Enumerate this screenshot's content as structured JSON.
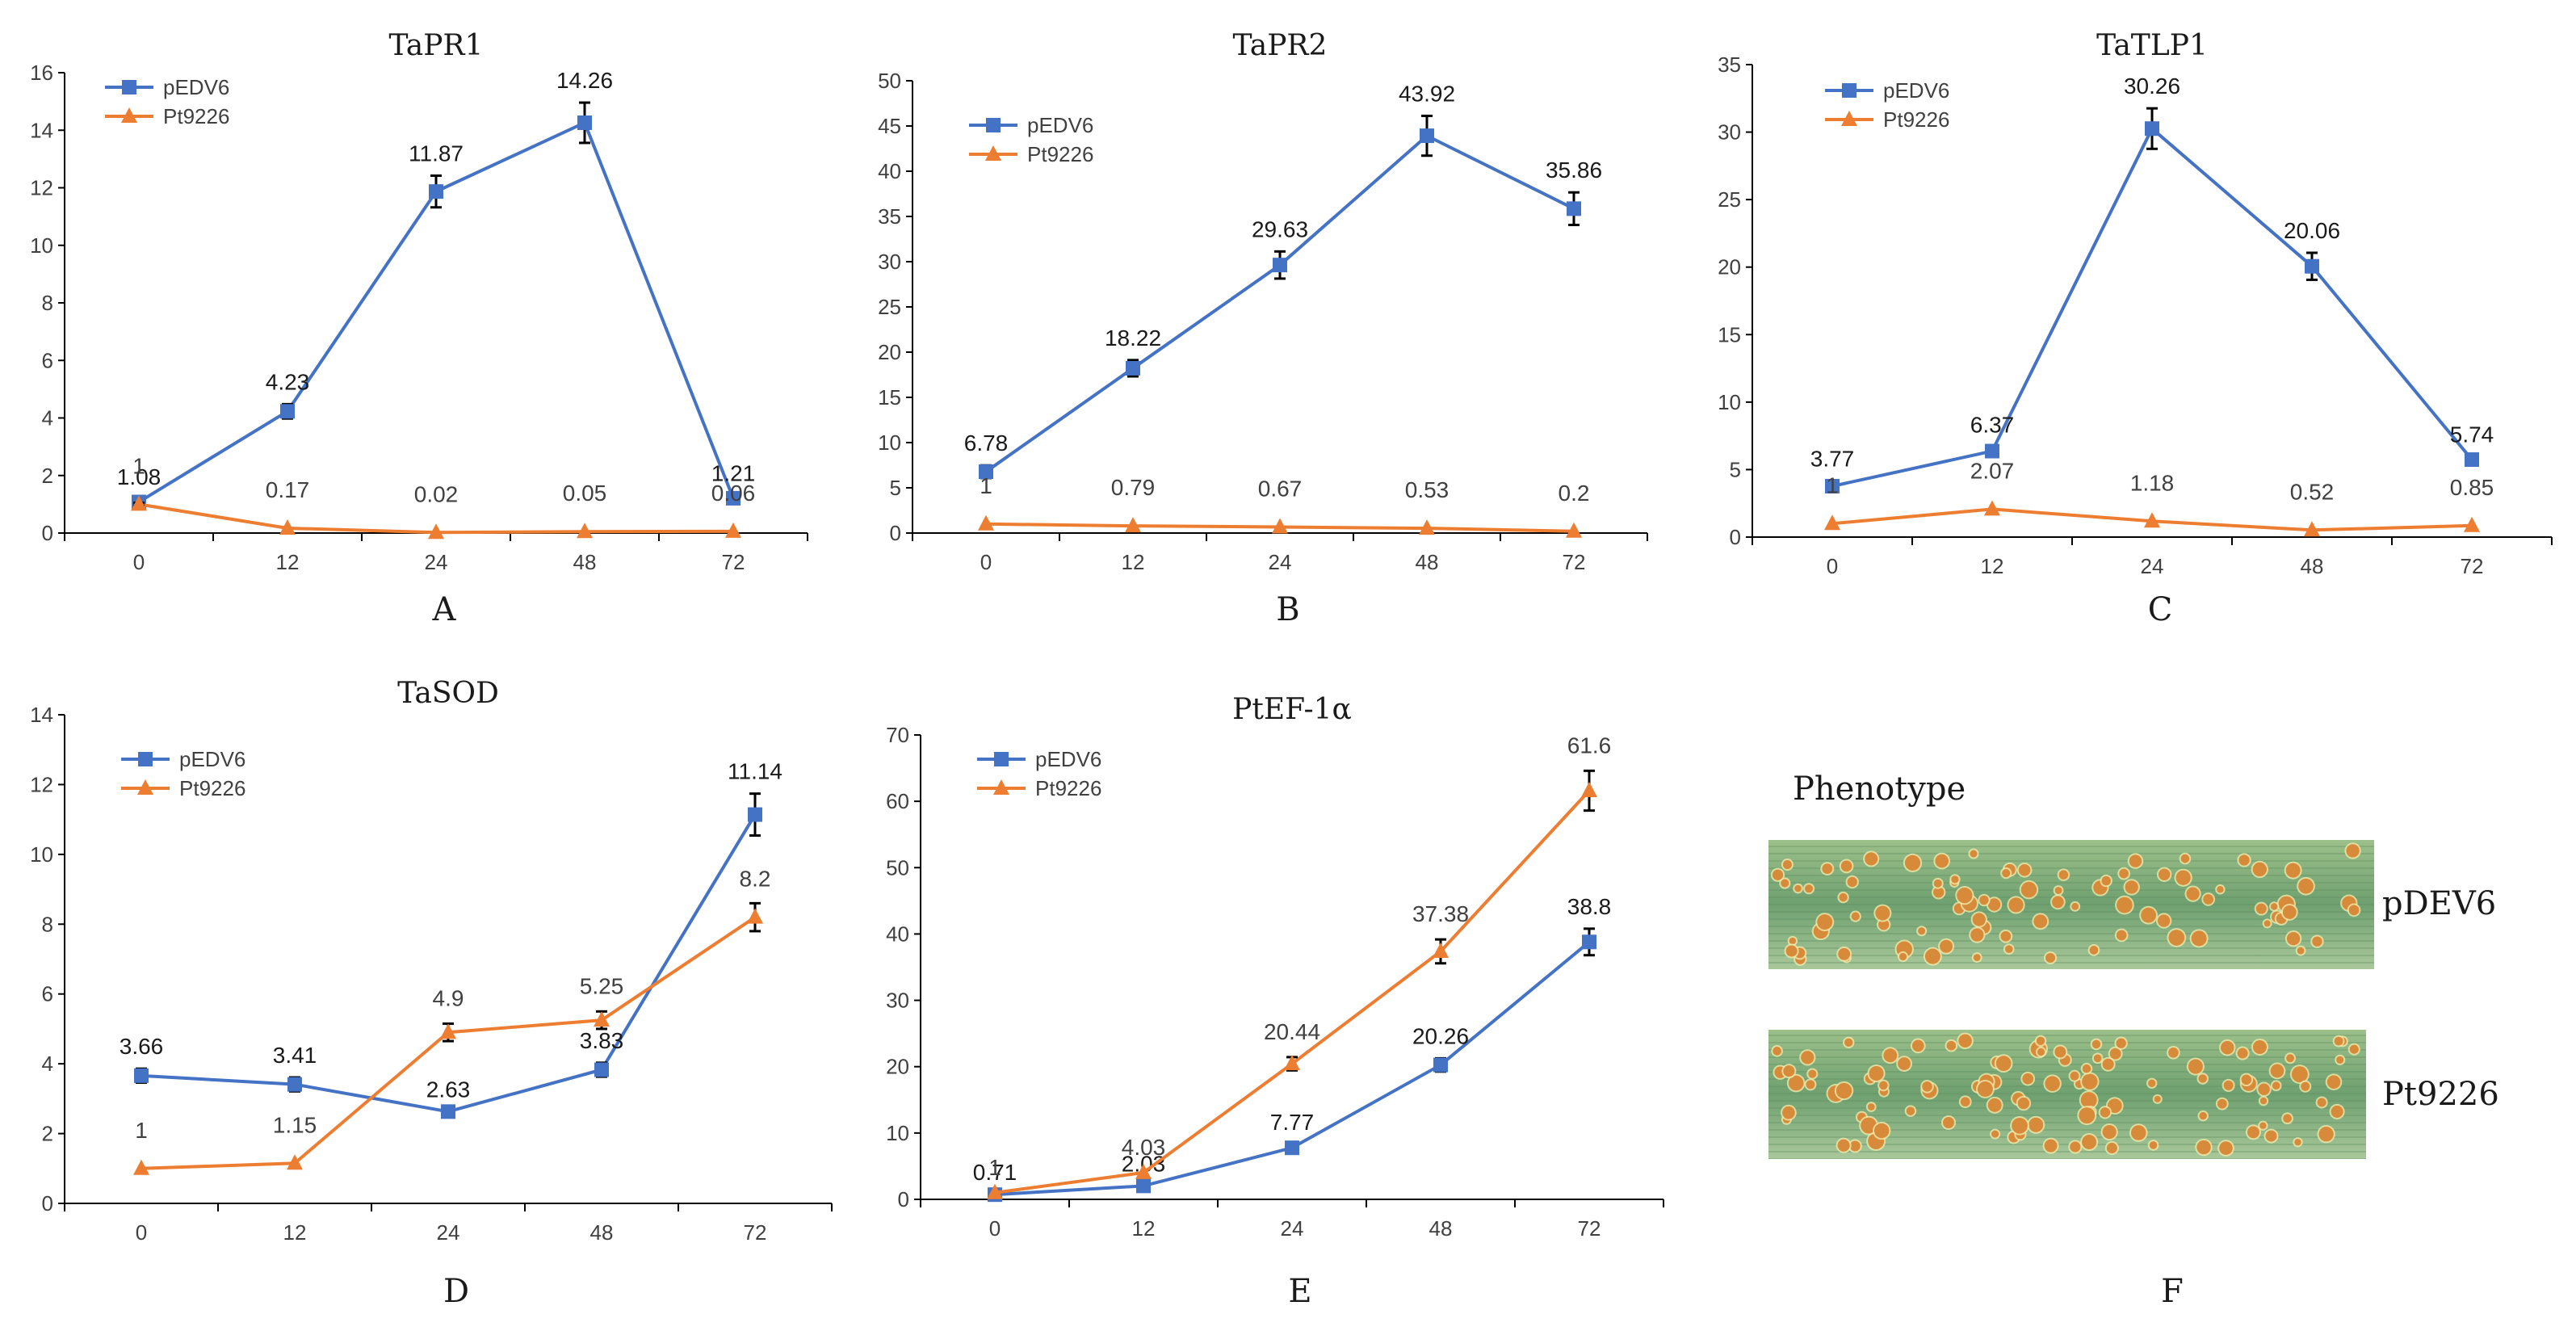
{
  "colors": {
    "pEDV6": "#4472C4",
    "Pt9226": "#ED7D31",
    "axis": "#000000",
    "errorbar": "#000000"
  },
  "chart_data": [
    {
      "panel": "A",
      "type": "line",
      "title": "TaPR1",
      "categories": [
        "0",
        "12",
        "24",
        "48",
        "72"
      ],
      "ylim": [
        0,
        16
      ],
      "yticks": [
        0,
        2,
        4,
        6,
        8,
        10,
        12,
        14,
        16
      ],
      "legend": "top-left",
      "series": [
        {
          "name": "pEDV6",
          "marker": "square",
          "values": [
            1.08,
            4.23,
            11.87,
            14.26,
            1.21
          ],
          "labels": [
            "1.08",
            "4.23",
            "11.87",
            "14.26",
            "1.21"
          ],
          "errors": [
            0.1,
            0.25,
            0.55,
            0.7,
            0.1
          ]
        },
        {
          "name": "Pt9226",
          "marker": "triangle",
          "values": [
            1.0,
            0.17,
            0.02,
            0.05,
            0.06
          ],
          "labels": [
            "1",
            "0.17",
            "0.02",
            "0.05",
            "0.06"
          ],
          "errors": [
            0.05,
            0.0,
            0.0,
            0.0,
            0.0
          ]
        }
      ]
    },
    {
      "panel": "B",
      "type": "line",
      "title": "TaPR2",
      "categories": [
        "0",
        "12",
        "24",
        "48",
        "72"
      ],
      "ylim": [
        0,
        50
      ],
      "yticks": [
        0,
        5,
        10,
        15,
        20,
        25,
        30,
        35,
        40,
        45,
        50
      ],
      "legend": "top-left",
      "series": [
        {
          "name": "pEDV6",
          "marker": "square",
          "values": [
            6.78,
            18.22,
            29.63,
            43.92,
            35.86
          ],
          "labels": [
            "6.78",
            "18.22",
            "29.63",
            "43.92",
            "35.86"
          ],
          "errors": [
            0.7,
            0.9,
            1.5,
            2.2,
            1.8
          ]
        },
        {
          "name": "Pt9226",
          "marker": "triangle",
          "values": [
            1.0,
            0.79,
            0.67,
            0.53,
            0.2
          ],
          "labels": [
            "1",
            "0.79",
            "0.67",
            "0.53",
            "0.2"
          ],
          "errors": [
            0.0,
            0.0,
            0.0,
            0.0,
            0.0
          ]
        }
      ]
    },
    {
      "panel": "C",
      "type": "line",
      "title": "TaTLP1",
      "categories": [
        "0",
        "12",
        "24",
        "48",
        "72"
      ],
      "ylim": [
        0,
        35
      ],
      "yticks": [
        0,
        5,
        10,
        15,
        20,
        25,
        30,
        35
      ],
      "legend": "top-left",
      "series": [
        {
          "name": "pEDV6",
          "marker": "square",
          "values": [
            3.77,
            6.37,
            30.26,
            20.06,
            5.74
          ],
          "labels": [
            "3.77",
            "6.37",
            "30.26",
            "20.06",
            "5.74"
          ],
          "errors": [
            0.4,
            0.3,
            1.5,
            1.0,
            0.2
          ]
        },
        {
          "name": "Pt9226",
          "marker": "triangle",
          "values": [
            1.0,
            2.07,
            1.18,
            0.52,
            0.85
          ],
          "labels": [
            "1",
            "2.07",
            "1.18",
            "0.52",
            "0.85"
          ],
          "errors": [
            0.0,
            0.0,
            0.0,
            0.0,
            0.0
          ]
        }
      ]
    },
    {
      "panel": "D",
      "type": "line",
      "title": "TaSOD",
      "categories": [
        "0",
        "12",
        "24",
        "48",
        "72"
      ],
      "ylim": [
        0,
        14
      ],
      "yticks": [
        0,
        2,
        4,
        6,
        8,
        10,
        12,
        14
      ],
      "legend": "top-left",
      "series": [
        {
          "name": "pEDV6",
          "marker": "square",
          "values": [
            3.66,
            3.41,
            2.63,
            3.83,
            11.14
          ],
          "labels": [
            "3.66",
            "3.41",
            "2.63",
            "3.83",
            "11.14"
          ],
          "errors": [
            0.2,
            0.2,
            0.0,
            0.2,
            0.6
          ]
        },
        {
          "name": "Pt9226",
          "marker": "triangle",
          "values": [
            1.0,
            1.15,
            4.9,
            5.25,
            8.2
          ],
          "labels": [
            "1",
            "1.15",
            "4.9",
            "5.25",
            "8.2"
          ],
          "errors": [
            0.0,
            0.0,
            0.25,
            0.25,
            0.4
          ]
        }
      ]
    },
    {
      "panel": "E",
      "type": "line",
      "title": "PtEF-1α",
      "categories": [
        "0",
        "12",
        "24",
        "48",
        "72"
      ],
      "ylim": [
        0,
        70
      ],
      "yticks": [
        0,
        10,
        20,
        30,
        40,
        50,
        60,
        70
      ],
      "legend": "top-left",
      "series": [
        {
          "name": "pEDV6",
          "marker": "square",
          "values": [
            0.71,
            2.03,
            7.77,
            20.26,
            38.8
          ],
          "labels": [
            "0.71",
            "2.03",
            "7.77",
            "20.26",
            "38.8"
          ],
          "errors": [
            0.0,
            0.0,
            0.5,
            1.0,
            2.0
          ]
        },
        {
          "name": "Pt9226",
          "marker": "triangle",
          "values": [
            1.0,
            4.03,
            20.44,
            37.38,
            61.6
          ],
          "labels": [
            "1",
            "4.03",
            "20.44",
            "37.38",
            "61.6"
          ],
          "errors": [
            0.0,
            0.0,
            1.0,
            1.8,
            3.0
          ]
        }
      ]
    }
  ],
  "phenotype": {
    "panel": "F",
    "title": "Phenotype",
    "leaves": [
      {
        "label": "pDEV6"
      },
      {
        "label": "Pt9226"
      }
    ]
  }
}
